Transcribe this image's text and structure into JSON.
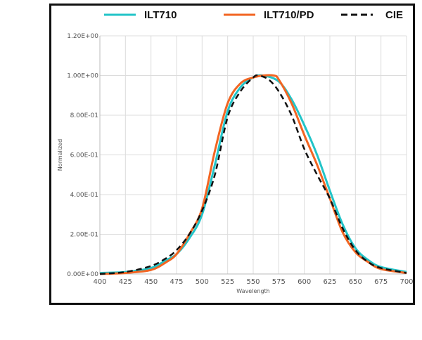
{
  "chart_data": {
    "type": "line",
    "title": "",
    "xlabel": "Wavelength",
    "ylabel": "Normalized",
    "xlim": [
      400,
      700
    ],
    "ylim": [
      0,
      1.2
    ],
    "xticks": [
      "400",
      "425",
      "450",
      "475",
      "500",
      "525",
      "550",
      "575",
      "600",
      "625",
      "650",
      "675",
      "700"
    ],
    "yticks": [
      "0.00E+00",
      "2.00E-01",
      "4.00E-01",
      "6.00E-01",
      "8.00E-01",
      "1.00E+00",
      "1.20E+00"
    ],
    "grid": true,
    "legend_position": "top",
    "series": [
      {
        "name": "ILT710",
        "color": "#22c4c8",
        "dash": false,
        "x": [
          400,
          425,
          450,
          465,
          475,
          487.5,
          500,
          512.5,
          525,
          537.5,
          550,
          560,
          575,
          587.5,
          600,
          612.5,
          625,
          637.5,
          650,
          662.5,
          675,
          700
        ],
        "y": [
          0.005,
          0.01,
          0.03,
          0.07,
          0.1,
          0.18,
          0.3,
          0.55,
          0.82,
          0.94,
          0.99,
          1.0,
          0.97,
          0.88,
          0.75,
          0.6,
          0.42,
          0.25,
          0.13,
          0.07,
          0.035,
          0.01
        ]
      },
      {
        "name": "ILT710/PD",
        "color": "#f26522",
        "dash": false,
        "x": [
          400,
          425,
          450,
          465,
          475,
          487.5,
          500,
          512.5,
          525,
          537.5,
          550,
          560,
          570,
          575,
          587.5,
          600,
          612.5,
          625,
          637.5,
          650,
          662.5,
          675,
          700
        ],
        "y": [
          0,
          0.005,
          0.02,
          0.06,
          0.1,
          0.2,
          0.33,
          0.62,
          0.86,
          0.96,
          0.99,
          1.0,
          1.0,
          0.98,
          0.86,
          0.7,
          0.55,
          0.38,
          0.21,
          0.11,
          0.06,
          0.025,
          0.005
        ]
      },
      {
        "name": "CIE",
        "color": "#111111",
        "dash": true,
        "x": [
          400,
          425,
          450,
          465,
          475,
          487.5,
          500,
          512.5,
          525,
          537.5,
          550,
          555,
          565,
          575,
          587.5,
          600,
          612.5,
          625,
          637.5,
          650,
          662.5,
          675,
          700
        ],
        "y": [
          0,
          0.01,
          0.04,
          0.08,
          0.12,
          0.2,
          0.32,
          0.5,
          0.79,
          0.92,
          0.99,
          1.0,
          0.98,
          0.92,
          0.8,
          0.63,
          0.5,
          0.38,
          0.23,
          0.12,
          0.06,
          0.03,
          0.005
        ]
      }
    ]
  }
}
